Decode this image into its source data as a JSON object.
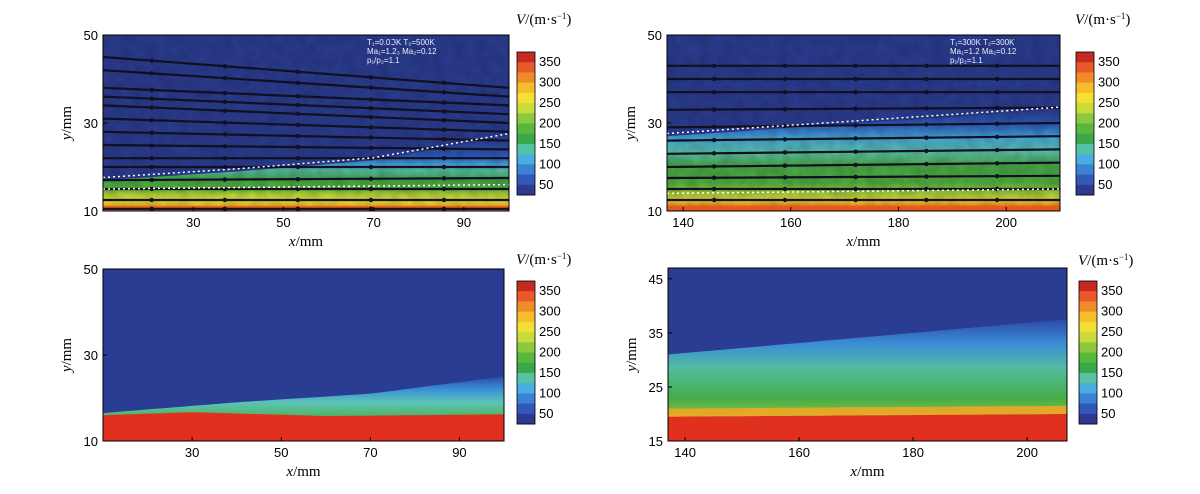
{
  "chart_data": [
    {
      "type": "heatmap",
      "panel": "experimental",
      "x_range": [
        10,
        100
      ],
      "y_range": [
        10,
        50
      ],
      "x_ticks": [
        30,
        50,
        70,
        90
      ],
      "y_ticks": [
        10,
        30,
        50
      ],
      "xlabel_var": "x",
      "xlabel_unit": "/mm",
      "ylabel_var": "y",
      "ylabel_unit": "/mm",
      "colorbar_var": "V",
      "colorbar_unit": "/(m·s",
      "colorbar_exp": "−1",
      "colorbar_close": ")",
      "colorbar_ticks": [
        350,
        300,
        250,
        200,
        150,
        100,
        50
      ],
      "annotation": [
        "T₁=0.0ℑK T₂=500K",
        "Ma₁=1.2₃ Ma₂=0.12",
        "p₁/p₂=1.1"
      ],
      "interface_y": [
        [
          10,
          17
        ],
        [
          40,
          19
        ],
        [
          70,
          21.5
        ],
        [
          100,
          27
        ]
      ],
      "core_y": [
        [
          10,
          15
        ],
        [
          100,
          16
        ]
      ],
      "streamlines": [
        [
          [
            10,
            45
          ],
          [
            100,
            38
          ]
        ],
        [
          [
            10,
            42
          ],
          [
            100,
            36
          ]
        ],
        [
          [
            10,
            38
          ],
          [
            100,
            34
          ]
        ],
        [
          [
            10,
            36
          ],
          [
            100,
            32
          ]
        ],
        [
          [
            10,
            34
          ],
          [
            100,
            30
          ]
        ],
        [
          [
            10,
            31
          ],
          [
            100,
            28
          ]
        ],
        [
          [
            10,
            28
          ],
          [
            100,
            26
          ]
        ],
        [
          [
            10,
            25
          ],
          [
            100,
            24
          ]
        ],
        [
          [
            10,
            22
          ],
          [
            100,
            22
          ]
        ],
        [
          [
            10,
            20
          ],
          [
            100,
            20
          ]
        ],
        [
          [
            10,
            17
          ],
          [
            100,
            17.5
          ]
        ],
        [
          [
            10,
            15
          ],
          [
            100,
            15
          ]
        ],
        [
          [
            10,
            12.5
          ],
          [
            100,
            12.5
          ]
        ],
        [
          [
            10,
            10.5
          ],
          [
            100,
            10.5
          ]
        ]
      ]
    },
    {
      "type": "heatmap",
      "panel": "experimental",
      "x_range": [
        137,
        210
      ],
      "y_range": [
        10,
        50
      ],
      "x_ticks": [
        140,
        160,
        180,
        200
      ],
      "y_ticks": [
        10,
        30,
        50
      ],
      "xlabel_var": "x",
      "xlabel_unit": "/mm",
      "ylabel_var": "y",
      "ylabel_unit": "/mm",
      "colorbar_var": "V",
      "colorbar_unit": "/(m·s",
      "colorbar_exp": "−1",
      "colorbar_close": ")",
      "colorbar_ticks": [
        350,
        300,
        250,
        200,
        150,
        100,
        50
      ],
      "annotation": [
        "T₁=300K T₂=300K",
        "Ma₁=1.2 Ma₂=0.12",
        "p₁/p₂=1.1"
      ],
      "interface_y": [
        [
          137,
          27
        ],
        [
          210,
          33
        ]
      ],
      "core_y": [
        [
          137,
          14
        ],
        [
          210,
          15
        ]
      ],
      "streamlines": [
        [
          [
            137,
            43
          ],
          [
            210,
            43
          ]
        ],
        [
          [
            137,
            40
          ],
          [
            210,
            40
          ]
        ],
        [
          [
            137,
            37
          ],
          [
            210,
            37
          ]
        ],
        [
          [
            137,
            33
          ],
          [
            210,
            33.5
          ]
        ],
        [
          [
            137,
            29
          ],
          [
            210,
            30
          ]
        ],
        [
          [
            137,
            26
          ],
          [
            210,
            27
          ]
        ],
        [
          [
            137,
            23
          ],
          [
            210,
            24
          ]
        ],
        [
          [
            137,
            20
          ],
          [
            210,
            21
          ]
        ],
        [
          [
            137,
            17.5
          ],
          [
            210,
            18
          ]
        ],
        [
          [
            137,
            15
          ],
          [
            210,
            15
          ]
        ],
        [
          [
            137,
            12.5
          ],
          [
            210,
            12.5
          ]
        ]
      ]
    },
    {
      "type": "heatmap",
      "panel": "simulation",
      "x_range": [
        10,
        100
      ],
      "y_range": [
        10,
        50
      ],
      "x_ticks": [
        30,
        50,
        70,
        90
      ],
      "y_ticks": [
        10,
        30,
        50
      ],
      "xlabel_var": "x",
      "xlabel_unit": "/mm",
      "ylabel_var": "y",
      "ylabel_unit": "/mm",
      "colorbar_var": "V",
      "colorbar_unit": "/(m·s",
      "colorbar_exp": "−1",
      "colorbar_close": ")",
      "colorbar_ticks": [
        350,
        300,
        250,
        200,
        150,
        100,
        50
      ],
      "interface_y": [
        [
          10,
          16.5
        ],
        [
          40,
          19
        ],
        [
          70,
          21
        ],
        [
          100,
          25
        ]
      ],
      "core_y": [
        [
          10,
          16
        ],
        [
          30,
          16.7
        ],
        [
          60,
          15.8
        ],
        [
          100,
          16.2
        ]
      ]
    },
    {
      "type": "heatmap",
      "panel": "simulation",
      "x_range": [
        137,
        207
      ],
      "y_range": [
        15,
        47
      ],
      "x_ticks": [
        140,
        160,
        180,
        200
      ],
      "y_ticks": [
        15,
        25,
        35,
        45
      ],
      "xlabel_var": "x",
      "xlabel_unit": "/mm",
      "ylabel_var": "y",
      "ylabel_unit": "/mm",
      "colorbar_var": "V",
      "colorbar_unit": "/(m·s",
      "colorbar_exp": "−1",
      "colorbar_close": ")",
      "colorbar_ticks": [
        350,
        300,
        250,
        200,
        150,
        100,
        50
      ],
      "interface_y": [
        [
          137,
          31
        ],
        [
          207,
          37.5
        ]
      ],
      "core_y": [
        [
          137,
          19.5
        ],
        [
          207,
          20
        ]
      ]
    }
  ],
  "colormap": {
    "stops": [
      "#2a3c90",
      "#2f5bc6",
      "#3a9ad8",
      "#5cc8b0",
      "#6cbf4a",
      "#48a83a",
      "#b8d838",
      "#f2e030",
      "#f5a020",
      "#e03020"
    ],
    "bar_colors": [
      "#c42a22",
      "#e8582a",
      "#f08c28",
      "#f4be2a",
      "#f4e034",
      "#c8dc3a",
      "#8cc840",
      "#58b83c",
      "#3aa848",
      "#56c2a4",
      "#48aee0",
      "#3a82d4",
      "#3458b8",
      "#2e3a90"
    ]
  }
}
